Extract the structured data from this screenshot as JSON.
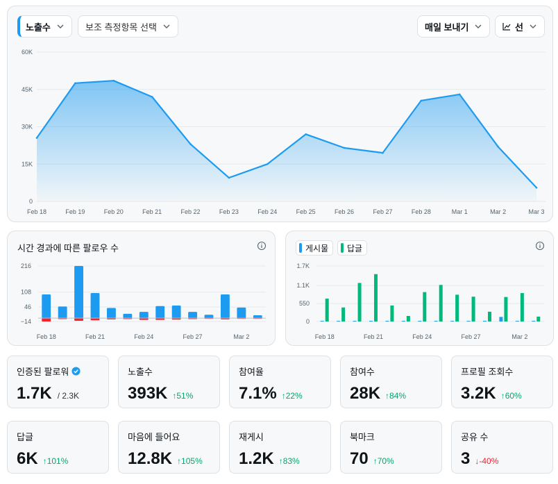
{
  "header": {
    "metric_select": "노출수",
    "secondary_select": "보조 측정항목 선택",
    "send_daily": "매일 보내기",
    "chart_type": "선"
  },
  "colors": {
    "accent": "#1d9bf0",
    "green": "#00ba7c",
    "red": "#f4212e"
  },
  "chart_data": [
    {
      "type": "area",
      "x": [
        "Feb 18",
        "Feb 19",
        "Feb 20",
        "Feb 21",
        "Feb 22",
        "Feb 23",
        "Feb 24",
        "Feb 25",
        "Feb 26",
        "Feb 27",
        "Feb 28",
        "Mar 1",
        "Mar 2",
        "Mar 3"
      ],
      "values": [
        25500,
        47500,
        48500,
        42000,
        23000,
        9500,
        15000,
        27000,
        21500,
        19500,
        40500,
        43000,
        22000,
        5500
      ],
      "yticks": [
        "0",
        "15K",
        "30K",
        "45K",
        "60K"
      ],
      "ylim": [
        0,
        60000
      ],
      "color": "#1d9bf0"
    },
    {
      "type": "bar",
      "title": "시간 경과에 따른 팔로우 수",
      "yticks": [
        "216",
        "108",
        "46",
        "−14"
      ],
      "ytick_values": [
        216,
        108,
        46,
        -14
      ],
      "xticks": [
        "Feb 18",
        "Feb 21",
        "Feb 24",
        "Feb 27",
        "Mar 2"
      ],
      "xtick_index": [
        0,
        3,
        6,
        9,
        12
      ],
      "ylim": [
        -14,
        216
      ],
      "series": [
        {
          "values": [
            98,
            48,
            216,
            104,
            42,
            18,
            26,
            50,
            52,
            26,
            14,
            98,
            44,
            12
          ],
          "color": "#1d9bf0"
        },
        {
          "values": [
            -14,
            -4,
            -11,
            -9,
            -5,
            -4,
            -7,
            -7,
            -6,
            -4,
            -3,
            -5,
            -3,
            -1
          ],
          "color": "#f4212e"
        }
      ]
    },
    {
      "type": "bar",
      "yticks": [
        "1.7K",
        "1.1K",
        "550",
        "0"
      ],
      "ytick_values": [
        1700,
        1100,
        550,
        0
      ],
      "xticks": [
        "Feb 18",
        "Feb 21",
        "Feb 24",
        "Feb 27",
        "Mar 2"
      ],
      "xtick_index": [
        0,
        3,
        6,
        9,
        12
      ],
      "ylim": [
        0,
        1700
      ],
      "series": [
        {
          "name": "게시물",
          "values": [
            20,
            20,
            20,
            20,
            20,
            20,
            20,
            20,
            20,
            20,
            20,
            140,
            20,
            20
          ],
          "color": "#1d9bf0"
        },
        {
          "name": "답글",
          "values": [
            700,
            430,
            1180,
            1450,
            490,
            170,
            900,
            1120,
            820,
            760,
            300,
            750,
            870,
            150
          ],
          "color": "#00ba7c"
        }
      ]
    }
  ],
  "stats": [
    {
      "label": "인증된 팔로워",
      "value": "1.7K",
      "sub": "/ 2.3K",
      "change": "",
      "dir": "",
      "verified": true
    },
    {
      "label": "노출수",
      "value": "393K",
      "sub": "",
      "change": "↑51%",
      "dir": "up"
    },
    {
      "label": "참여율",
      "value": "7.1%",
      "sub": "",
      "change": "↑22%",
      "dir": "up"
    },
    {
      "label": "참여수",
      "value": "28K",
      "sub": "",
      "change": "↑84%",
      "dir": "up"
    },
    {
      "label": "프로필 조회수",
      "value": "3.2K",
      "sub": "",
      "change": "↑60%",
      "dir": "up"
    },
    {
      "label": "답글",
      "value": "6K",
      "sub": "",
      "change": "↑101%",
      "dir": "up"
    },
    {
      "label": "마음에 들어요",
      "value": "12.8K",
      "sub": "",
      "change": "↑105%",
      "dir": "up"
    },
    {
      "label": "재게시",
      "value": "1.2K",
      "sub": "",
      "change": "↑83%",
      "dir": "up"
    },
    {
      "label": "북마크",
      "value": "70",
      "sub": "",
      "change": "↑70%",
      "dir": "up"
    },
    {
      "label": "공유 수",
      "value": "3",
      "sub": "",
      "change": "↓-40%",
      "dir": "down"
    }
  ]
}
